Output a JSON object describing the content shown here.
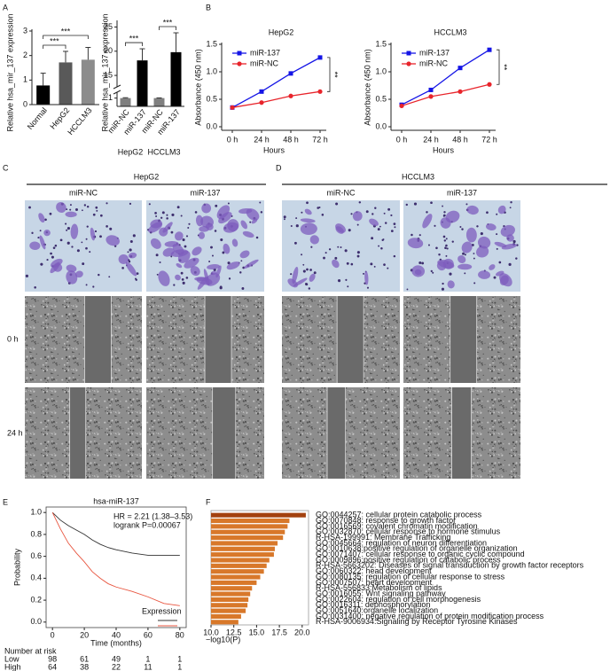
{
  "panel_letters": [
    "A",
    "B",
    "C",
    "D",
    "E",
    "F"
  ],
  "image_panels": [
    {
      "title": "HepG2",
      "columns": [
        "miR-NC",
        "miR-137"
      ]
    },
    {
      "title": "HCCLM3",
      "columns": [
        "miR-NC",
        "miR-137"
      ]
    }
  ],
  "row_labels": [
    "0 h",
    "24 h"
  ],
  "chart_data": [
    {
      "type": "bar",
      "ylabel": "Relative hsa_mir_137 expression",
      "categories": [
        "Normal",
        "HepG2",
        "HCCLM3"
      ],
      "values": [
        0.78,
        1.72,
        1.83
      ],
      "errors": [
        0.5,
        0.45,
        0.5
      ],
      "colors": [
        "#000000",
        "#595959",
        "#8c8c8c"
      ],
      "ylim": [
        0,
        3
      ],
      "yticks": [
        0,
        1,
        2,
        3
      ],
      "significance": [
        {
          "label": "***",
          "from": 0,
          "to": 1
        },
        {
          "label": "***",
          "from": 0,
          "to": 2
        }
      ]
    },
    {
      "type": "broken_bar",
      "ylabel": "Relative hsa_mir_137 expression",
      "categories": [
        "miR-NC",
        "miR-137",
        "miR-NC",
        "miR-137"
      ],
      "groups": [
        "HepG2",
        "HCCLM3"
      ],
      "values": [
        1.0,
        18.1,
        1.0,
        19.8
      ],
      "errors": [
        0.05,
        2.4,
        0.02,
        4.0
      ],
      "colors": [
        "#7f7f7f",
        "#000000",
        "#7f7f7f",
        "#000000"
      ],
      "ylim": [
        0,
        26
      ],
      "ybreak": [
        1.5,
        13
      ],
      "yticks": [
        1,
        15,
        20,
        25
      ],
      "significance": [
        {
          "label": "***",
          "from": 0,
          "to": 1
        },
        {
          "label": "***",
          "from": 2,
          "to": 3
        }
      ]
    },
    {
      "type": "line",
      "title": "HepG2",
      "xlabel": "Hours",
      "ylabel": "Absorbance (450 nm)",
      "categories": [
        "0 h",
        "24 h",
        "48 h",
        "72 h"
      ],
      "series": [
        {
          "name": "miR-137",
          "color": "#1515e6",
          "marker": "square",
          "values": [
            0.35,
            0.64,
            0.97,
            1.26
          ]
        },
        {
          "name": "miR-NC",
          "color": "#e8242b",
          "marker": "circle",
          "values": [
            0.35,
            0.44,
            0.56,
            0.64
          ]
        }
      ],
      "ylim": [
        0,
        1.5
      ],
      "yticks": [
        {
          "value": 0,
          "label": "0.0"
        },
        {
          "value": 0.5,
          "label": "0.5"
        },
        {
          "value": 1,
          "label": "1.0"
        },
        {
          "value": 1.5,
          "label": "1.5"
        }
      ],
      "significance": "**"
    },
    {
      "type": "line",
      "title": "HCCLM3",
      "xlabel": "Hours",
      "ylabel": "Absorbance (450 nm)",
      "categories": [
        "0 h",
        "24 h",
        "48 h",
        "72 h"
      ],
      "series": [
        {
          "name": "miR-137",
          "color": "#1515e6",
          "marker": "square",
          "values": [
            0.4,
            0.67,
            1.07,
            1.4
          ]
        },
        {
          "name": "miR-NC",
          "color": "#e8242b",
          "marker": "circle",
          "values": [
            0.38,
            0.55,
            0.64,
            0.77
          ]
        }
      ],
      "ylim": [
        0,
        1.5
      ],
      "yticks": [
        {
          "value": 0,
          "label": "0.0"
        },
        {
          "value": 0.5,
          "label": "0.5"
        },
        {
          "value": 1,
          "label": "1.0"
        },
        {
          "value": 1.5,
          "label": "1.5"
        }
      ],
      "significance": "**"
    },
    {
      "type": "survival",
      "title": "hsa-miR-137",
      "xlabel": "Time (months)",
      "ylabel": "Probability",
      "annotations": [
        "HR = 2.21 (1.38–3.53)",
        "logrank P=0.00067"
      ],
      "legend_title": "Expression",
      "at_risk_title": "Number at risk",
      "x": [
        0,
        5,
        10,
        15,
        20,
        25,
        30,
        35,
        40,
        50,
        60,
        70,
        80
      ],
      "series": [
        {
          "name": "Low",
          "color": "#333333",
          "values": [
            1,
            0.93,
            0.88,
            0.84,
            0.8,
            0.75,
            0.71,
            0.68,
            0.66,
            0.63,
            0.61,
            0.61,
            0.61
          ],
          "at_risk": [
            98,
            61,
            49,
            1,
            1
          ]
        },
        {
          "name": "High",
          "color": "#e8553f",
          "values": [
            1,
            0.85,
            0.72,
            0.63,
            0.55,
            0.46,
            0.4,
            0.35,
            0.32,
            0.28,
            0.23,
            0.17,
            0.15
          ],
          "at_risk": [
            64,
            38,
            22,
            11,
            1
          ]
        }
      ],
      "xlim": [
        -4,
        84
      ],
      "xticks": [
        0,
        20,
        40,
        60,
        80
      ],
      "ylim": [
        -0.05,
        1.05
      ],
      "yticks": [
        {
          "value": 0,
          "label": "0.0"
        },
        {
          "value": 0.2,
          "label": "0.2"
        },
        {
          "value": 0.4,
          "label": "0.4"
        },
        {
          "value": 0.6,
          "label": "0.6"
        },
        {
          "value": 0.8,
          "label": "0.8"
        },
        {
          "value": 1,
          "label": "1.0"
        }
      ]
    },
    {
      "type": "hbar",
      "xlabel": "−log10(P)",
      "categories": [
        "GO:0044257: cellular protein catabolic process",
        "GO:0070848: response to growth factor",
        "GO:0016569: covalent chromatin modification",
        "GO:0032870: cellular response to hormone stimulus",
        "R-HSA-199991: Membrane Trafficking",
        "GO:0045664: regulation of neuron differentiation",
        "GO:0010638:positive regulation of organelle organization",
        "GO:0071407: cellular response to organic cyclic compound",
        "GO:0009896:positive regulation of catabolic process",
        "R-HSA-5663202: Diseases of signal transduction by growth factor receptors",
        "GO:0060322: head development",
        "GO:0080135: regulation of cellular response to stress",
        "GO:0007507: heart development",
        "R-HSA-556833:Metabolism of lipids",
        "GO:0016055: Wnt signaling pathway",
        "GO:0022604: regulation of cell morphogenesis",
        "GO:0016311: dephosphorylation",
        "GO:0051640:organelle localization",
        "GO:0031400: negative regulation of protein modification process",
        "R-HSA-9006934:Signaling by Receptor Tyrosine Kinases"
      ],
      "values": [
        20.4,
        18.6,
        18.4,
        18.1,
        17.9,
        17.3,
        17.0,
        16.9,
        16.4,
        16.1,
        15.8,
        15.4,
        15.0,
        14.5,
        14.3,
        14.1,
        14.0,
        13.8,
        13.3,
        13.0
      ],
      "colors": [
        "#a3410f",
        "#d8782a",
        "#d8782a",
        "#d8782a",
        "#d8782a",
        "#d8782a",
        "#d8782a",
        "#d8782a",
        "#d8782a",
        "#d8782a",
        "#d8782a",
        "#d8782a",
        "#d8782a",
        "#d8782a",
        "#d8782a",
        "#d8782a",
        "#d8782a",
        "#d8782a",
        "#d8782a",
        "#d8782a"
      ],
      "xlim": [
        10,
        20.7
      ],
      "xticks": [
        {
          "value": 10,
          "label": "10.0"
        },
        12.5,
        {
          "value": 15,
          "label": "15.0"
        },
        17.5,
        {
          "value": 20,
          "label": "20.0"
        }
      ]
    }
  ]
}
